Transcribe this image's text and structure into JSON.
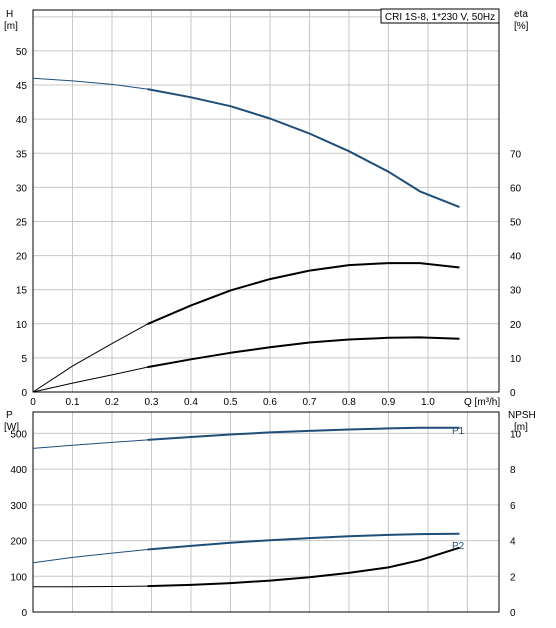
{
  "chart_data": [
    {
      "type": "line",
      "title": "CRI 1S-8, 1*230 V, 50Hz",
      "xlabel": "Q [m³/h]",
      "x_ticks": [
        "0",
        "0.1",
        "0.2",
        "0.3",
        "0.4",
        "0.5",
        "0.6",
        "0.7",
        "0.8",
        "0.9",
        "1.0"
      ],
      "xlim": [
        0,
        1.18
      ],
      "ylabel_left": "H",
      "ylabel_left_unit": "[m]",
      "ylim_left": [
        0,
        56
      ],
      "yticks_left": [
        0,
        5,
        10,
        15,
        20,
        25,
        30,
        35,
        40,
        45,
        50
      ],
      "ylabel_right": "eta",
      "ylabel_right_unit": "[%]",
      "ylim_right": [
        0,
        112
      ],
      "yticks_right": [
        0,
        10,
        20,
        30,
        40,
        50,
        60,
        70
      ],
      "grid": true,
      "series": [
        {
          "axis": "left",
          "color": "#1f4e79",
          "points": [
            [
              0,
              46
            ],
            [
              0.1,
              45.6
            ],
            [
              0.2,
              45.1
            ],
            [
              0.29,
              44.4
            ],
            [
              0.4,
              43.2
            ],
            [
              0.5,
              41.9
            ],
            [
              0.6,
              40.1
            ],
            [
              0.7,
              37.9
            ],
            [
              0.8,
              35.3
            ],
            [
              0.9,
              32.3
            ],
            [
              0.98,
              29.4
            ],
            [
              1.08,
              27.1
            ]
          ]
        },
        {
          "axis": "right",
          "color": "#000000",
          "points": [
            [
              0,
              0
            ],
            [
              0.1,
              7.6
            ],
            [
              0.2,
              14.2
            ],
            [
              0.29,
              19.9
            ],
            [
              0.4,
              25.4
            ],
            [
              0.5,
              29.8
            ],
            [
              0.6,
              33.1
            ],
            [
              0.7,
              35.6
            ],
            [
              0.8,
              37.2
            ],
            [
              0.9,
              37.8
            ],
            [
              0.98,
              37.8
            ],
            [
              1.08,
              36.5
            ]
          ]
        },
        {
          "axis": "right",
          "color": "#000000",
          "points": [
            [
              0,
              0
            ],
            [
              0.1,
              2.6
            ],
            [
              0.2,
              5.0
            ],
            [
              0.29,
              7.3
            ],
            [
              0.4,
              9.6
            ],
            [
              0.5,
              11.5
            ],
            [
              0.6,
              13.1
            ],
            [
              0.7,
              14.5
            ],
            [
              0.8,
              15.4
            ],
            [
              0.9,
              15.9
            ],
            [
              0.98,
              16.0
            ],
            [
              1.08,
              15.6
            ]
          ]
        }
      ]
    },
    {
      "type": "line",
      "xlim": [
        0,
        1.18
      ],
      "ylabel_left": "P",
      "ylabel_left_unit": "[W]",
      "ylim_left": [
        0,
        560
      ],
      "yticks_left": [
        0,
        100,
        200,
        300,
        400,
        500
      ],
      "ylabel_right": "NPSH",
      "ylabel_right_unit": "[m]",
      "ylim_right": [
        0,
        11.2
      ],
      "yticks_right": [
        0,
        2,
        4,
        6,
        8,
        10
      ],
      "grid": true,
      "series": [
        {
          "name": "P1",
          "axis": "left",
          "color": "#1f4e79",
          "points": [
            [
              0,
              458
            ],
            [
              0.1,
              467
            ],
            [
              0.2,
              475
            ],
            [
              0.29,
              482
            ],
            [
              0.4,
              490
            ],
            [
              0.5,
              497
            ],
            [
              0.6,
              503
            ],
            [
              0.7,
              507
            ],
            [
              0.8,
              511
            ],
            [
              0.9,
              514
            ],
            [
              0.98,
              516
            ],
            [
              1.08,
              516
            ]
          ]
        },
        {
          "name": "P2",
          "axis": "left",
          "color": "#1f4e79",
          "points": [
            [
              0,
              138
            ],
            [
              0.1,
              153
            ],
            [
              0.2,
              165
            ],
            [
              0.29,
              175
            ],
            [
              0.4,
              185
            ],
            [
              0.5,
              194
            ],
            [
              0.6,
              201
            ],
            [
              0.7,
              207
            ],
            [
              0.8,
              212
            ],
            [
              0.9,
              216
            ],
            [
              0.98,
              218
            ],
            [
              1.08,
              219
            ]
          ]
        },
        {
          "axis": "right",
          "color": "#000000",
          "points": [
            [
              0,
              1.41
            ],
            [
              0.1,
              1.41
            ],
            [
              0.2,
              1.43
            ],
            [
              0.29,
              1.45
            ],
            [
              0.4,
              1.52
            ],
            [
              0.5,
              1.62
            ],
            [
              0.6,
              1.76
            ],
            [
              0.7,
              1.95
            ],
            [
              0.8,
              2.19
            ],
            [
              0.9,
              2.5
            ],
            [
              0.98,
              2.9
            ],
            [
              1.08,
              3.6
            ]
          ]
        }
      ]
    }
  ]
}
